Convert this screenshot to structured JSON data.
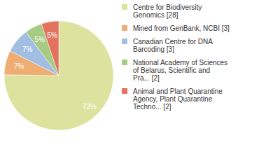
{
  "chart_data": {
    "type": "pie",
    "categories": [
      "Centre for Biodiversity Genomics [28]",
      "Mined from GenBank, NCBI [3]",
      "Canadian Centre for DNA Barcoding [3]",
      "National Academy of Sciences of Belarus, Scientific and Pra... [2]",
      "Animal and Plant Quarantine Agency, Plant Quarantine Techno... [2]"
    ],
    "values": [
      73,
      7,
      7,
      5,
      5
    ],
    "value_labels": [
      "73%",
      "7%",
      "7%",
      "5%",
      "5%"
    ],
    "colors": [
      "#dde39f",
      "#f0ad73",
      "#a2bee2",
      "#a7cb82",
      "#e2735f"
    ],
    "data_labels": true,
    "legend": "right"
  }
}
